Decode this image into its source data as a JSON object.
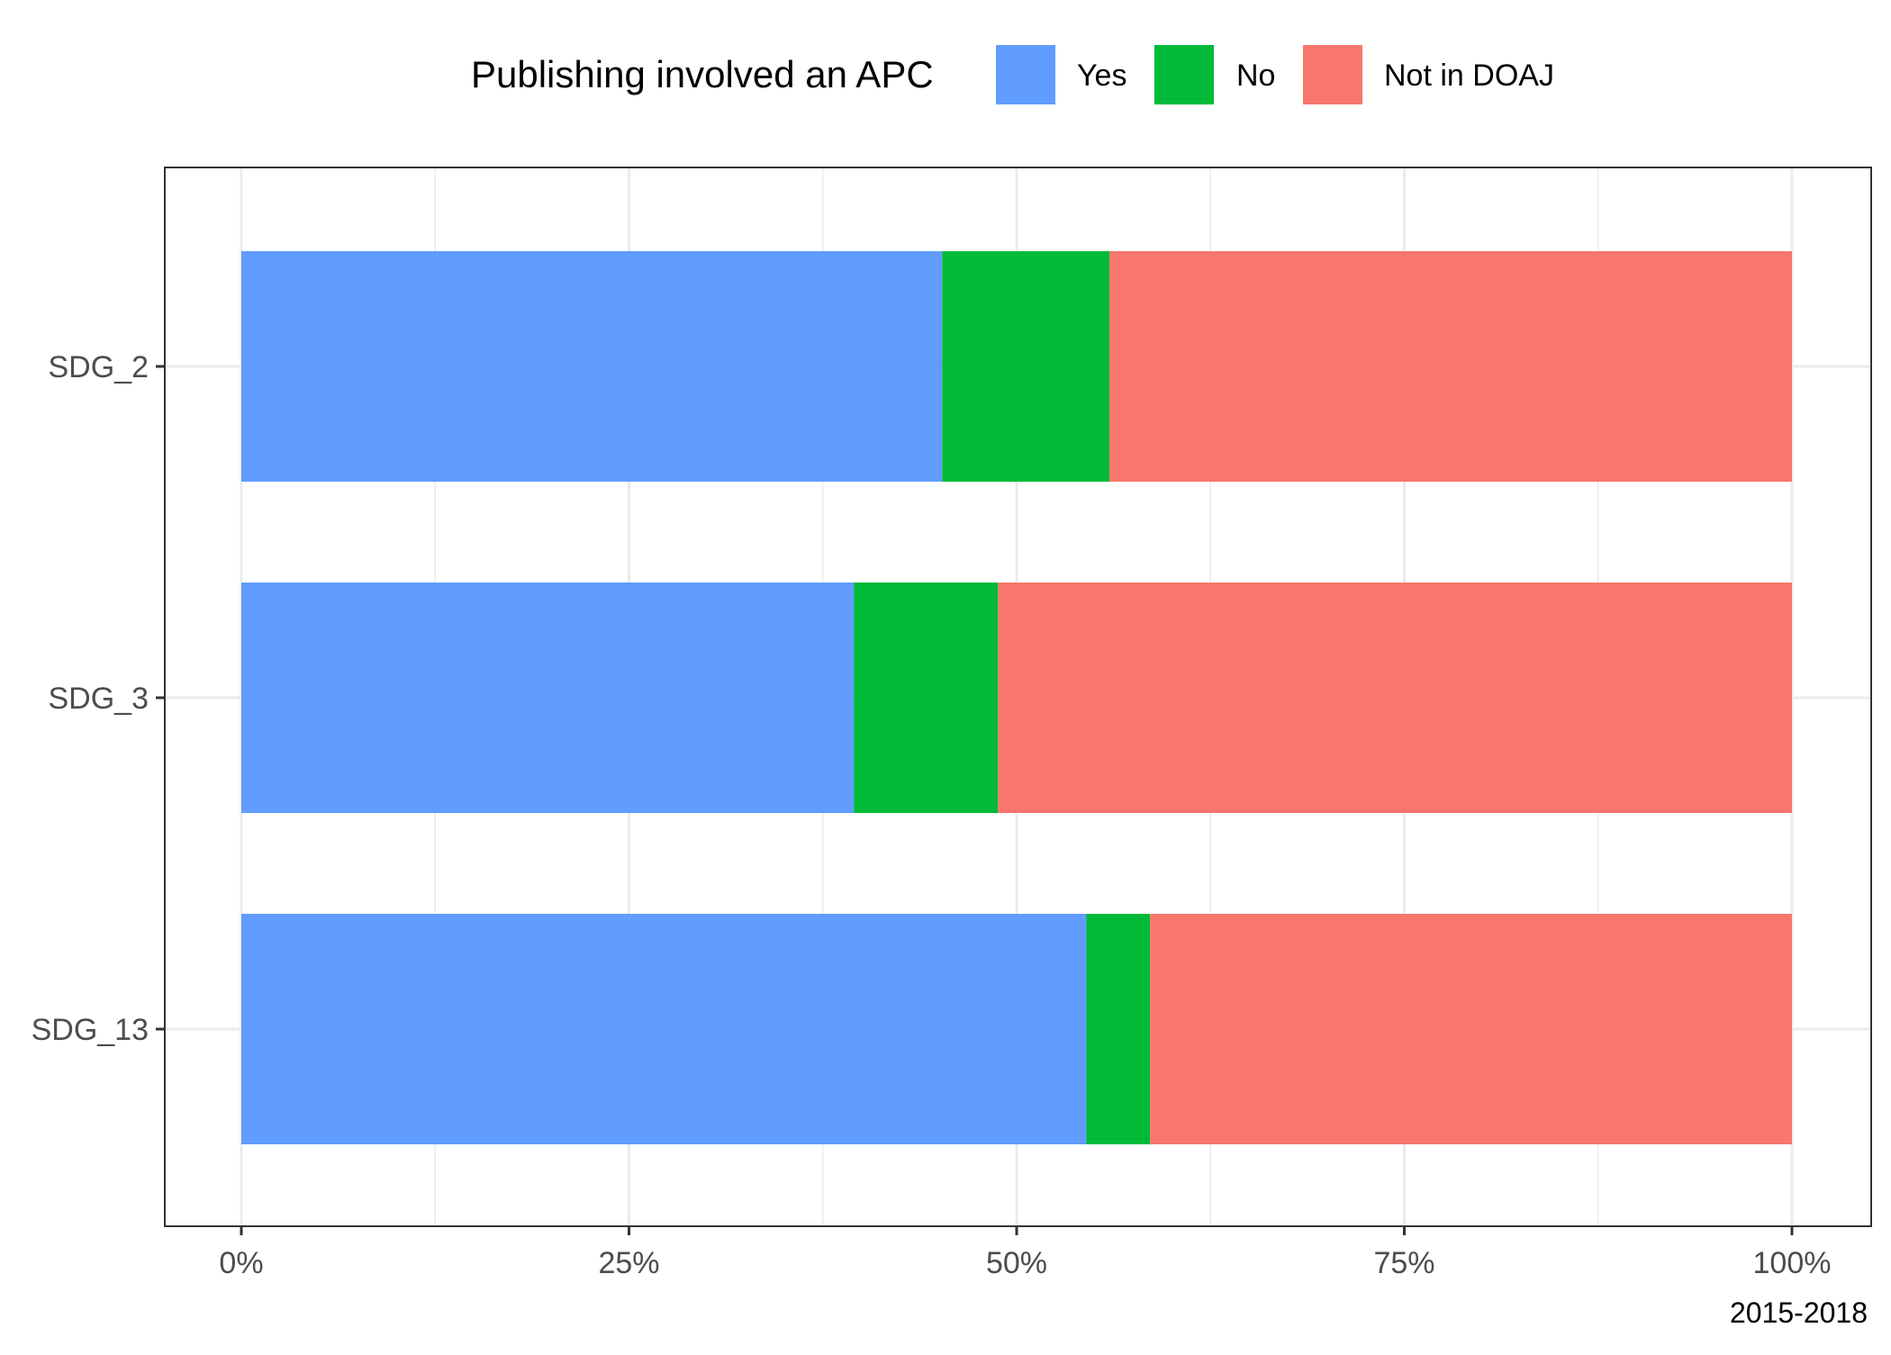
{
  "chart_data": {
    "type": "bar",
    "orientation": "horizontal",
    "stacked": true,
    "categories": [
      "SDG_2",
      "SDG_3",
      "SDG_13"
    ],
    "series": [
      {
        "name": "Yes",
        "color": "#619CFF",
        "values": [
          45.2,
          39.5,
          54.5
        ]
      },
      {
        "name": "No",
        "color": "#00BA38",
        "values": [
          10.8,
          9.3,
          4.1
        ]
      },
      {
        "name": "Not in DOAJ",
        "color": "#F8766D",
        "values": [
          44.0,
          51.2,
          41.4
        ]
      }
    ],
    "legend": {
      "title": "Publishing involved an APC",
      "position": "top"
    },
    "xlim": [
      0,
      100
    ],
    "x_ticks": [
      0,
      25,
      50,
      75,
      100
    ],
    "x_tick_labels": [
      "0%",
      "25%",
      "50%",
      "75%",
      "100%"
    ],
    "grid": true,
    "caption": "2015-2018",
    "title": "",
    "xlabel": "",
    "ylabel": ""
  }
}
